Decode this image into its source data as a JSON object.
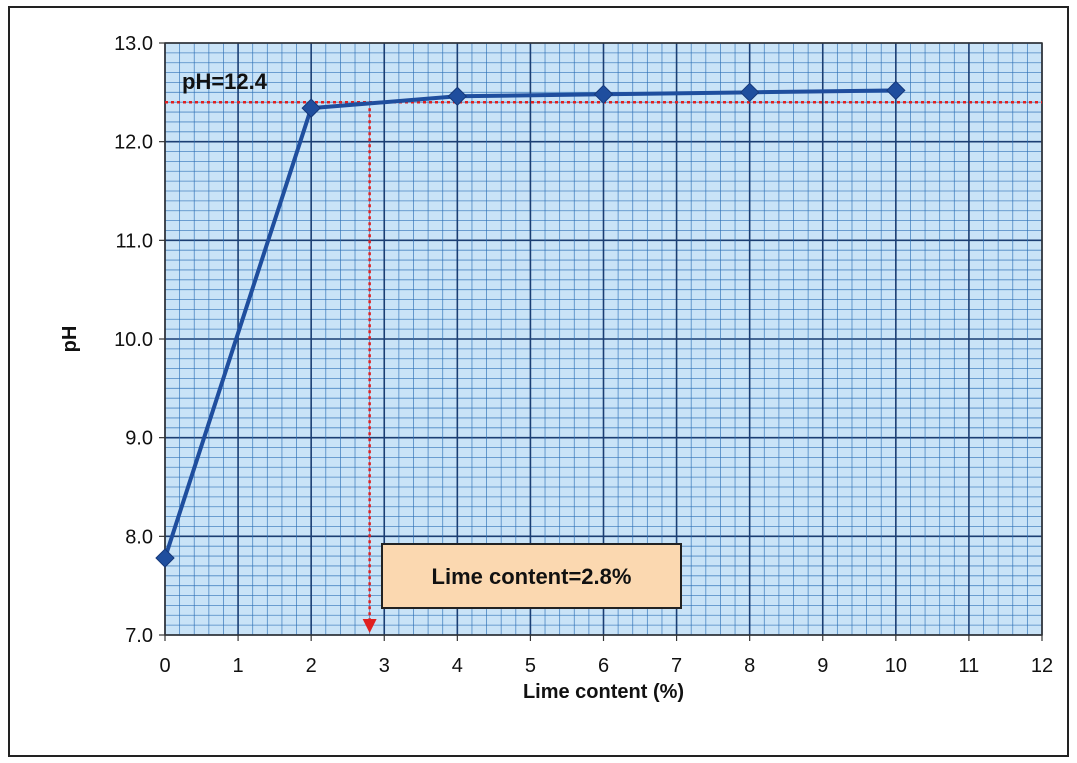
{
  "chart_data": {
    "type": "line",
    "title": "",
    "xlabel": "Lime content (%)",
    "ylabel": "pH",
    "xlim": [
      0,
      12
    ],
    "ylim": [
      7.0,
      13.0
    ],
    "x_ticks": [
      "0",
      "1",
      "2",
      "3",
      "4",
      "5",
      "6",
      "7",
      "8",
      "9",
      "10",
      "11",
      "12"
    ],
    "y_ticks": [
      "7.0",
      "8.0",
      "9.0",
      "10.0",
      "11.0",
      "12.0",
      "13.0"
    ],
    "grid": true,
    "series": [
      {
        "x": [
          0,
          2,
          4,
          6,
          8,
          10
        ],
        "values": [
          7.78,
          12.34,
          12.46,
          12.48,
          12.5,
          12.52
        ],
        "color": "#1f4e9e",
        "marker": "diamond"
      }
    ],
    "reference_lines": {
      "horizontal": {
        "y": 12.4,
        "label": "pH=12.4",
        "color": "#e02020"
      },
      "vertical": {
        "x": 2.8,
        "label": "Lime content=2.8%",
        "color": "#e02020"
      }
    },
    "colors": {
      "plot_background": "#c9e3f7",
      "grid_minor": "#2c6fb5",
      "grid_major": "#1b3e73",
      "annotation_box": "#fbd8b0"
    }
  }
}
